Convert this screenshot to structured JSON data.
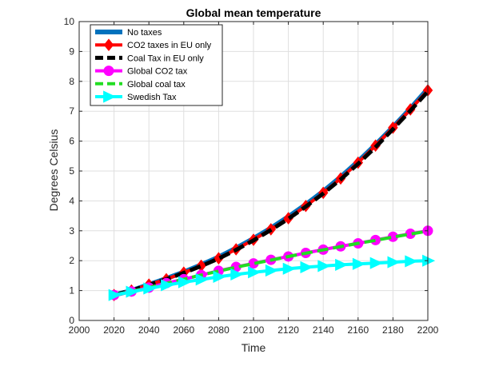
{
  "chart_data": {
    "type": "line",
    "title": "Global mean temperature",
    "xlabel": "Time",
    "ylabel": "Degrees Celsius",
    "xlim": [
      2000,
      2200
    ],
    "ylim": [
      0,
      10
    ],
    "xticks": [
      "2000",
      "2020",
      "2040",
      "2060",
      "2080",
      "2100",
      "2120",
      "2140",
      "2160",
      "2180",
      "2200"
    ],
    "yticks": [
      "0",
      "1",
      "2",
      "3",
      "4",
      "5",
      "6",
      "7",
      "8",
      "9",
      "10"
    ],
    "grid": true,
    "legend_position": "top-left",
    "series": [
      {
        "name": "No taxes",
        "color": "#0072BD",
        "linestyle": "solid",
        "marker": "none",
        "x": [
          2020,
          2030,
          2040,
          2050,
          2060,
          2070,
          2080,
          2090,
          2100,
          2110,
          2120,
          2130,
          2140,
          2150,
          2160,
          2170,
          2180,
          2190,
          2200
        ],
        "y": [
          0.85,
          1.0,
          1.2,
          1.4,
          1.62,
          1.86,
          2.12,
          2.42,
          2.74,
          3.09,
          3.47,
          3.88,
          4.32,
          4.8,
          5.32,
          5.88,
          6.47,
          7.09,
          7.75
        ]
      },
      {
        "name": "CO2 taxes in EU only",
        "color": "#FF0000",
        "linestyle": "solid",
        "marker": "diamond",
        "x": [
          2020,
          2030,
          2040,
          2050,
          2060,
          2070,
          2080,
          2090,
          2100,
          2110,
          2120,
          2130,
          2140,
          2150,
          2160,
          2170,
          2180,
          2190,
          2200
        ],
        "y": [
          0.85,
          1.0,
          1.2,
          1.38,
          1.6,
          1.83,
          2.08,
          2.38,
          2.7,
          3.05,
          3.42,
          3.83,
          4.27,
          4.75,
          5.28,
          5.85,
          6.45,
          7.06,
          7.7
        ]
      },
      {
        "name": "Coal Tax in EU only",
        "color": "#000000",
        "linestyle": "dashed",
        "marker": "none",
        "x": [
          2020,
          2030,
          2040,
          2050,
          2060,
          2070,
          2080,
          2090,
          2100,
          2110,
          2120,
          2130,
          2140,
          2150,
          2160,
          2170,
          2180,
          2190,
          2200
        ],
        "y": [
          0.85,
          1.0,
          1.19,
          1.38,
          1.59,
          1.82,
          2.07,
          2.36,
          2.68,
          3.03,
          3.4,
          3.81,
          4.25,
          4.72,
          5.24,
          5.8,
          6.4,
          7.02,
          7.66
        ]
      },
      {
        "name": "Global CO2 tax",
        "color": "#FF00FF",
        "linestyle": "solid",
        "marker": "circle",
        "x": [
          2020,
          2030,
          2040,
          2050,
          2060,
          2070,
          2080,
          2090,
          2100,
          2110,
          2120,
          2130,
          2140,
          2150,
          2160,
          2170,
          2180,
          2190,
          2200
        ],
        "y": [
          0.85,
          0.97,
          1.1,
          1.25,
          1.38,
          1.52,
          1.66,
          1.79,
          1.91,
          2.03,
          2.14,
          2.26,
          2.37,
          2.48,
          2.58,
          2.69,
          2.8,
          2.9,
          3.0
        ]
      },
      {
        "name": "Global coal tax",
        "color": "#22DD22",
        "linestyle": "dashed",
        "marker": "none",
        "x": [
          2020,
          2030,
          2040,
          2050,
          2060,
          2070,
          2080,
          2090,
          2100,
          2110,
          2120,
          2130,
          2140,
          2150,
          2160,
          2170,
          2180,
          2190,
          2200
        ],
        "y": [
          0.85,
          0.97,
          1.1,
          1.24,
          1.38,
          1.52,
          1.65,
          1.78,
          1.9,
          2.02,
          2.14,
          2.25,
          2.36,
          2.47,
          2.58,
          2.68,
          2.79,
          2.89,
          2.99
        ]
      },
      {
        "name": "Swedish Tax",
        "color": "#00FFFF",
        "linestyle": "solid",
        "marker": "triangle-right",
        "x": [
          2020,
          2030,
          2040,
          2050,
          2060,
          2070,
          2080,
          2090,
          2100,
          2110,
          2120,
          2130,
          2140,
          2150,
          2160,
          2170,
          2180,
          2190,
          2200
        ],
        "y": [
          0.85,
          0.96,
          1.07,
          1.18,
          1.28,
          1.37,
          1.46,
          1.54,
          1.61,
          1.67,
          1.73,
          1.78,
          1.82,
          1.86,
          1.89,
          1.92,
          1.95,
          1.98,
          2.0
        ]
      }
    ]
  }
}
